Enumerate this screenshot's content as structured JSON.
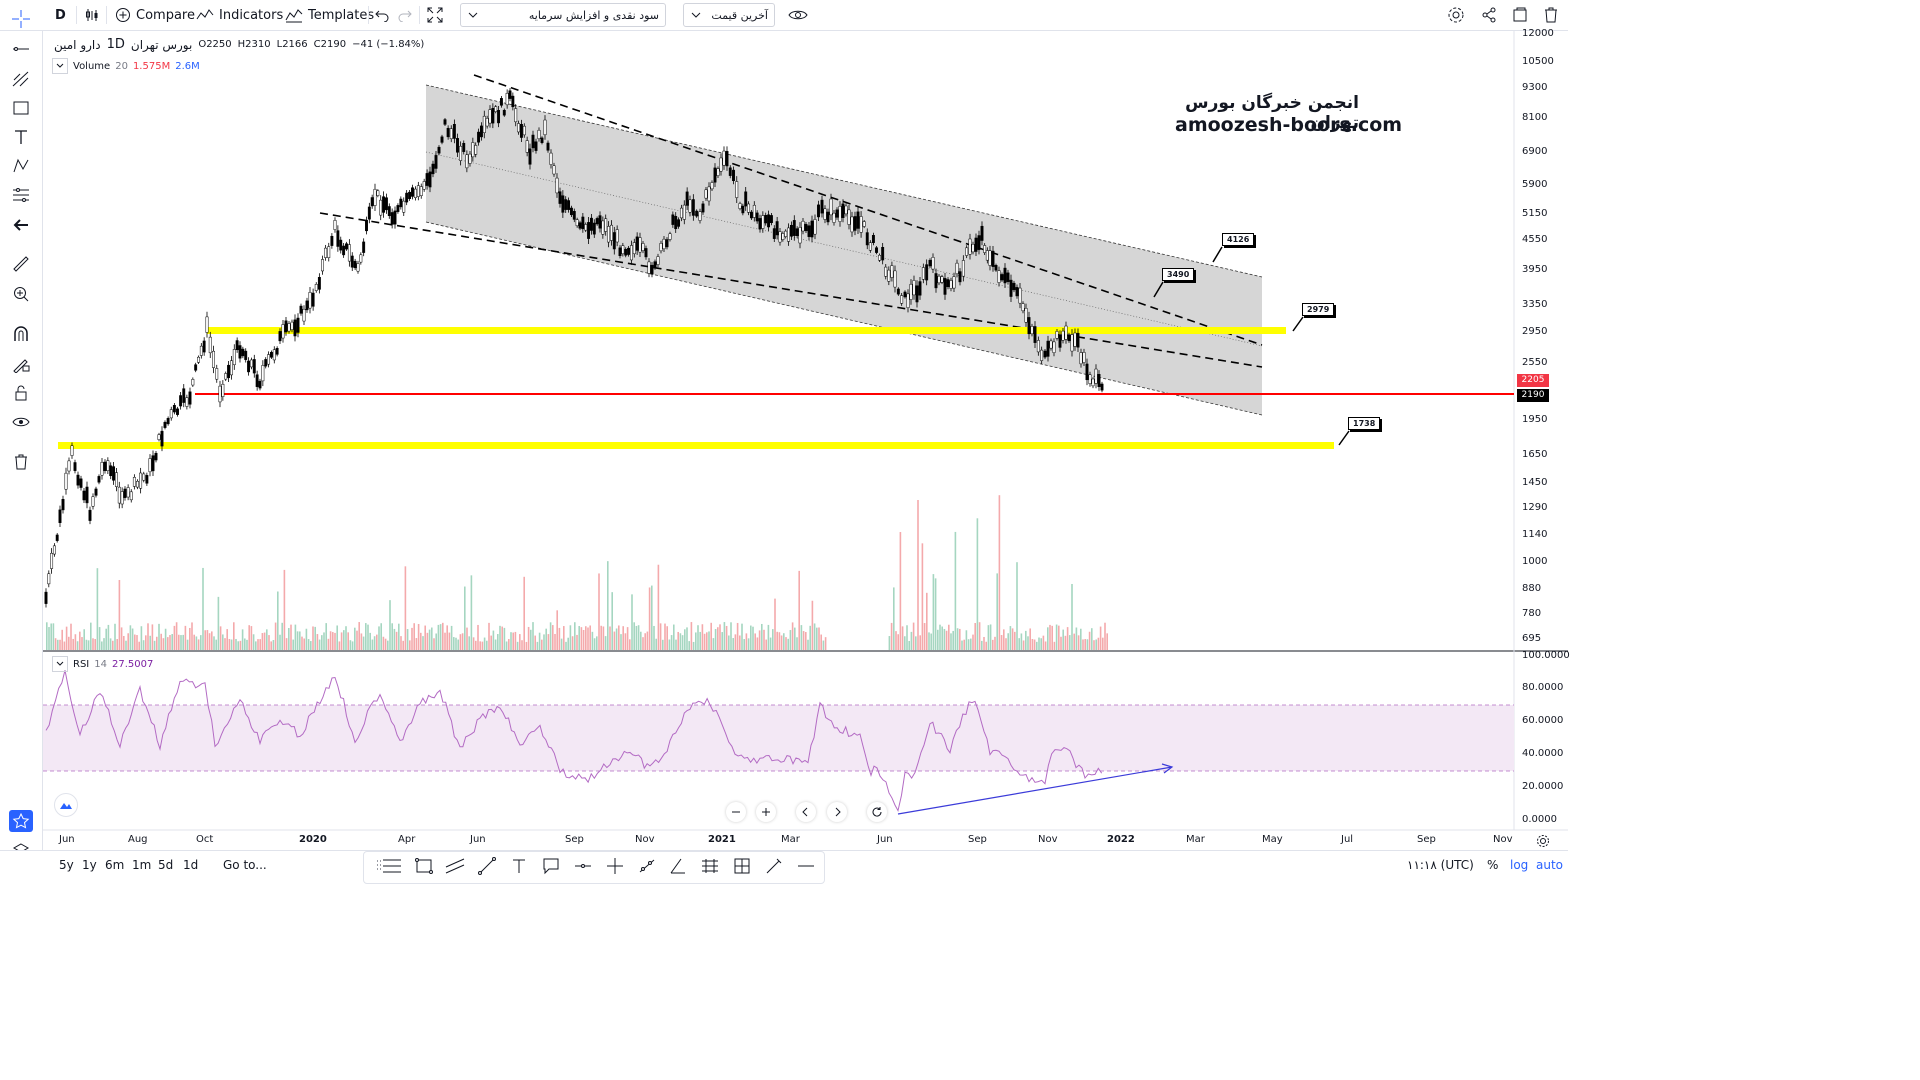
{
  "toolbar": {
    "interval": "D",
    "compare_label": "Compare",
    "indicators_label": "Indicators",
    "templates_label": "Templates",
    "layout_name": "سود نقدی و افزایش سرمایه",
    "price_source": "آخرین قیمت"
  },
  "legend": {
    "symbol_name": "دارو امین",
    "timeframe": "1D",
    "exchange": "بورس تهران",
    "open": "O2250",
    "high": "H2310",
    "low": "L2166",
    "close": "C2190",
    "change": "−41 (−1.84%)",
    "volume_label": "Volume",
    "volume_period": "20",
    "volume_value": "1.575M",
    "volume_ma": "2.6M"
  },
  "watermark": {
    "line1": "انجمن خبرگان بورس تهران",
    "line2": "amoozesh-boors.com"
  },
  "callouts": {
    "c1": "4126",
    "c2": "3490",
    "c3": "2979",
    "c4": "1738"
  },
  "price_axis": {
    "labels": [
      "12000",
      "10500",
      "9300",
      "8100",
      "6900",
      "5900",
      "5150",
      "4550",
      "3950",
      "3350",
      "2950",
      "2550",
      "1950",
      "1650",
      "1450",
      "1290",
      "1140",
      "1000",
      "880",
      "780",
      "695"
    ],
    "tag_upper": "2205",
    "tag_current": "2190",
    "tag_upper_color": "#f23645",
    "tag_current_color": "#000000"
  },
  "rsi": {
    "label": "RSI",
    "period": "14",
    "value": "27.5007",
    "axis": [
      "100.0000",
      "80.0000",
      "60.0000",
      "40.0000",
      "20.0000",
      "0.0000"
    ]
  },
  "time_axis": {
    "labels": [
      "Jun",
      "Aug",
      "Oct",
      "2020",
      "Apr",
      "Jun",
      "Sep",
      "Nov",
      "2021",
      "Mar",
      "Jun",
      "Sep",
      "Nov",
      "2022",
      "Mar",
      "May",
      "Jul",
      "Sep",
      "Nov"
    ]
  },
  "bottom": {
    "ranges": [
      "5y",
      "1y",
      "6m",
      "1m",
      "5d",
      "1d"
    ],
    "goto_label": "Go to...",
    "time_label": "۱۱:۱۸ (UTC)",
    "percent_label": "%",
    "log_label": "log",
    "auto_label": "auto"
  },
  "colors": {
    "yellow_level": "#ffff00",
    "red_level": "#ff0000",
    "channel_fill": "#d6d6d6",
    "rsi_line": "#b36bc4",
    "rsi_band": "#f3e8f5",
    "accent_blue": "#2962ff"
  }
}
